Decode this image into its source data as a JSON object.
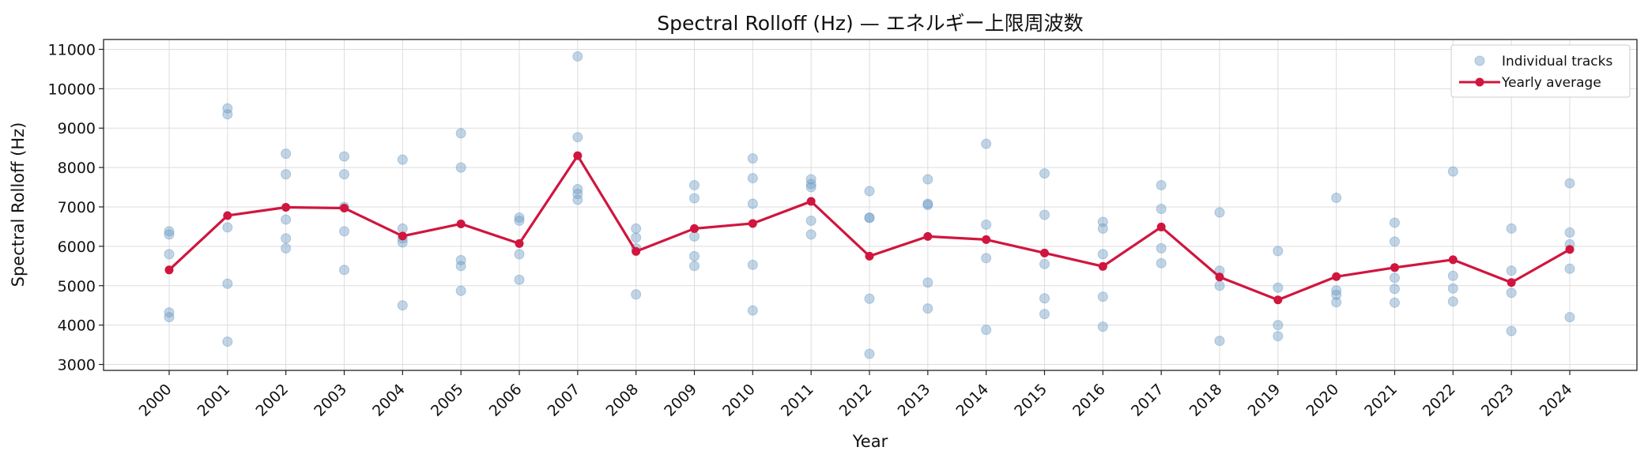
{
  "chart_data": {
    "type": "scatter+line",
    "title": "Spectral Rolloff (Hz) — エネルギー上限周波数",
    "xlabel": "Year",
    "ylabel": "Spectral Rolloff (Hz)",
    "ylim": [
      2850,
      11250
    ],
    "yticks": [
      3000,
      4000,
      5000,
      6000,
      7000,
      8000,
      9000,
      10000,
      11000
    ],
    "grid": true,
    "legend_position": "top-right",
    "x": [
      2000,
      2001,
      2002,
      2003,
      2004,
      2005,
      2006,
      2007,
      2008,
      2009,
      2010,
      2011,
      2012,
      2013,
      2014,
      2015,
      2016,
      2017,
      2018,
      2019,
      2020,
      2021,
      2022,
      2023,
      2024
    ],
    "series": [
      {
        "name": "Individual tracks",
        "kind": "scatter",
        "color": "#6b9ac4",
        "points": [
          [
            2000,
            6380
          ],
          [
            2000,
            6300
          ],
          [
            2000,
            5800
          ],
          [
            2000,
            4320
          ],
          [
            2000,
            4200
          ],
          [
            2001,
            9500
          ],
          [
            2001,
            9350
          ],
          [
            2001,
            6480
          ],
          [
            2001,
            5050
          ],
          [
            2001,
            3580
          ],
          [
            2002,
            8350
          ],
          [
            2002,
            7830
          ],
          [
            2002,
            6680
          ],
          [
            2002,
            6200
          ],
          [
            2002,
            5950
          ],
          [
            2003,
            8280
          ],
          [
            2003,
            7830
          ],
          [
            2003,
            7000
          ],
          [
            2003,
            6380
          ],
          [
            2003,
            5400
          ],
          [
            2004,
            8200
          ],
          [
            2004,
            6450
          ],
          [
            2004,
            6200
          ],
          [
            2004,
            6100
          ],
          [
            2004,
            4500
          ],
          [
            2005,
            8870
          ],
          [
            2005,
            8000
          ],
          [
            2005,
            5650
          ],
          [
            2005,
            5500
          ],
          [
            2005,
            4870
          ],
          [
            2006,
            6730
          ],
          [
            2006,
            6650
          ],
          [
            2006,
            5800
          ],
          [
            2006,
            5150
          ],
          [
            2007,
            10820
          ],
          [
            2007,
            8770
          ],
          [
            2007,
            7450
          ],
          [
            2007,
            7330
          ],
          [
            2007,
            7180
          ],
          [
            2008,
            6450
          ],
          [
            2008,
            6220
          ],
          [
            2008,
            5950
          ],
          [
            2008,
            4780
          ],
          [
            2009,
            7550
          ],
          [
            2009,
            7220
          ],
          [
            2009,
            6250
          ],
          [
            2009,
            5750
          ],
          [
            2009,
            5500
          ],
          [
            2010,
            8230
          ],
          [
            2010,
            7730
          ],
          [
            2010,
            7080
          ],
          [
            2010,
            5530
          ],
          [
            2010,
            4370
          ],
          [
            2011,
            7700
          ],
          [
            2011,
            7580
          ],
          [
            2011,
            7500
          ],
          [
            2011,
            6650
          ],
          [
            2011,
            6300
          ],
          [
            2012,
            7400
          ],
          [
            2012,
            6730
          ],
          [
            2012,
            6720
          ],
          [
            2012,
            4670
          ],
          [
            2012,
            3270
          ],
          [
            2013,
            7700
          ],
          [
            2013,
            7080
          ],
          [
            2013,
            7050
          ],
          [
            2013,
            5080
          ],
          [
            2013,
            4420
          ],
          [
            2014,
            8600
          ],
          [
            2014,
            6550
          ],
          [
            2014,
            5700
          ],
          [
            2014,
            3880
          ],
          [
            2015,
            7850
          ],
          [
            2015,
            6800
          ],
          [
            2015,
            5550
          ],
          [
            2015,
            4680
          ],
          [
            2015,
            4280
          ],
          [
            2016,
            6620
          ],
          [
            2016,
            6450
          ],
          [
            2016,
            5800
          ],
          [
            2016,
            4720
          ],
          [
            2016,
            3960
          ],
          [
            2017,
            7550
          ],
          [
            2017,
            6950
          ],
          [
            2017,
            5950
          ],
          [
            2017,
            5570
          ],
          [
            2018,
            6860
          ],
          [
            2018,
            5380
          ],
          [
            2018,
            5000
          ],
          [
            2018,
            3600
          ],
          [
            2019,
            5880
          ],
          [
            2019,
            4950
          ],
          [
            2019,
            4000
          ],
          [
            2019,
            3720
          ],
          [
            2020,
            7230
          ],
          [
            2020,
            4880
          ],
          [
            2020,
            4770
          ],
          [
            2020,
            4580
          ],
          [
            2021,
            6600
          ],
          [
            2021,
            6120
          ],
          [
            2021,
            5200
          ],
          [
            2021,
            4920
          ],
          [
            2021,
            4570
          ],
          [
            2022,
            7900
          ],
          [
            2022,
            5250
          ],
          [
            2022,
            4930
          ],
          [
            2022,
            4600
          ],
          [
            2023,
            6450
          ],
          [
            2023,
            5380
          ],
          [
            2023,
            4820
          ],
          [
            2023,
            3850
          ],
          [
            2024,
            7600
          ],
          [
            2024,
            6350
          ],
          [
            2024,
            6050
          ],
          [
            2024,
            5430
          ],
          [
            2024,
            4200
          ]
        ]
      },
      {
        "name": "Yearly average",
        "kind": "line",
        "color": "#d0163e",
        "values": [
          5400,
          6780,
          6990,
          6970,
          6260,
          6570,
          6070,
          8300,
          5870,
          6450,
          6580,
          7140,
          5750,
          6250,
          6170,
          5830,
          5490,
          6490,
          5220,
          4640,
          5230,
          5460,
          5660,
          5080,
          5920
        ]
      }
    ]
  }
}
